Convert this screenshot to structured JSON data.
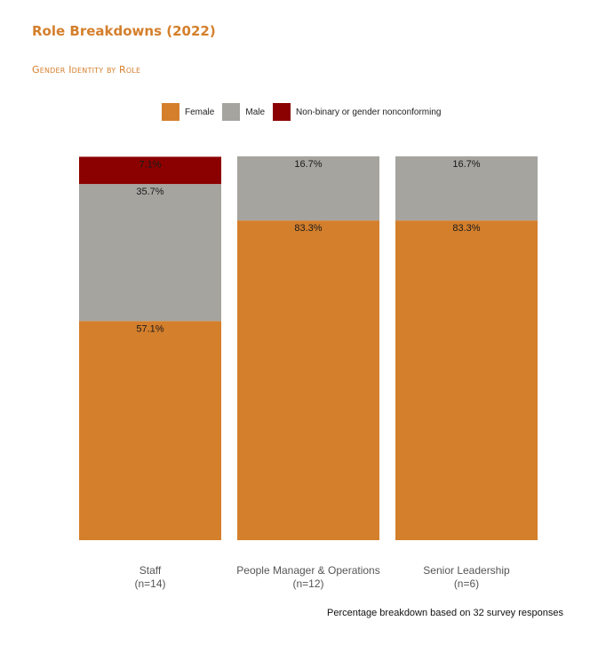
{
  "colors": {
    "accent": "#d47f2c",
    "female": "#d47f2c",
    "male": "#a5a49f",
    "nonbinary": "#8b0000"
  },
  "legend": [
    "Female",
    "Male",
    "Non-binary or gender nonconforming"
  ],
  "footnote": "Percentage breakdown based on 32 survey responses",
  "chart_data": {
    "type": "bar",
    "stacked": true,
    "title": "Role Breakdowns (2022)",
    "subtitle": "Gender Identity by Role",
    "categories": [
      "Staff",
      "People Manager & Operations",
      "Senior Leadership"
    ],
    "category_counts": [
      "(n=14)",
      "(n=12)",
      "(n=6)"
    ],
    "series": [
      {
        "name": "Female",
        "values": [
          57.1,
          83.3,
          83.3
        ],
        "labels": [
          "57.1%",
          "83.3%",
          "83.3%"
        ]
      },
      {
        "name": "Male",
        "values": [
          35.7,
          16.7,
          16.7
        ],
        "labels": [
          "35.7%",
          "16.7%",
          "16.7%"
        ]
      },
      {
        "name": "Non-binary or gender nonconforming",
        "values": [
          7.1,
          0,
          0
        ],
        "labels": [
          "7.1%",
          "",
          ""
        ]
      }
    ],
    "ylim": [
      0,
      100
    ],
    "legend_position": "top-center",
    "grid": false
  }
}
